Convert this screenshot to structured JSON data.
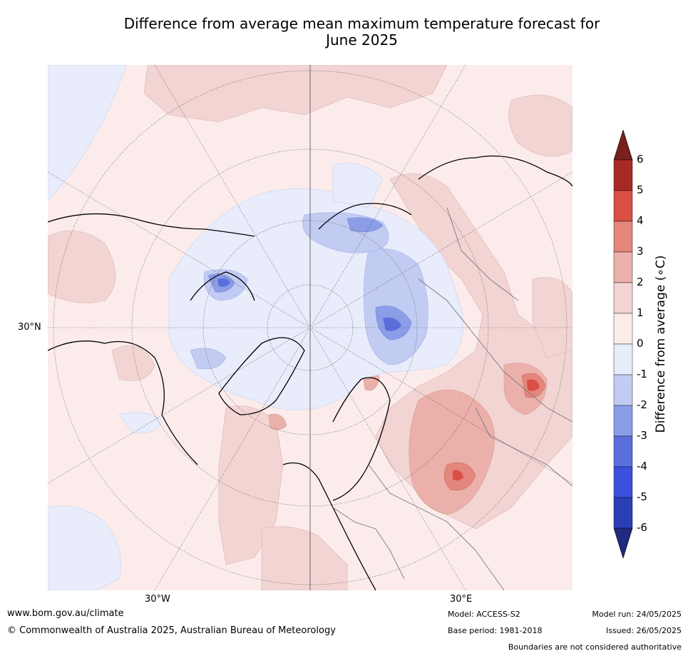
{
  "title_line1": "Difference from average mean maximum temperature forecast for",
  "title_line2": "June 2025",
  "map": {
    "lat_labels": [
      "30°N"
    ],
    "lon_labels": [
      "30°W",
      "30°E"
    ],
    "colors": {
      "ocean_base": "#fbeceb",
      "warm_1_2": "#f2d4d3",
      "warm_2_3": "#ebb0aa",
      "warm_3_4": "#e4867c",
      "warm_4_5": "#d84f44",
      "cool_0_1": "#e8ecfb",
      "cool_1_2": "#c2cbf2",
      "cool_2_3": "#8c9de8",
      "cool_3_4": "#5a6fdc"
    }
  },
  "colorbar": {
    "title": "Difference from average (∘C)",
    "ticks": [
      "6",
      "5",
      "4",
      "3",
      "2",
      "1",
      "0",
      "-1",
      "-2",
      "-3",
      "-4",
      "-5",
      "-6"
    ],
    "colors": [
      "#a72b24",
      "#d84f44",
      "#e4867c",
      "#ebb0aa",
      "#f2d4d3",
      "#fbeceb",
      "#e8ecfb",
      "#c2cbf2",
      "#8c9de8",
      "#5a6fdc",
      "#3b50dc",
      "#2a3fb5"
    ],
    "over_color": "#7a1f1b",
    "under_color": "#1f2a80"
  },
  "footer": {
    "website": "www.bom.gov.au/climate",
    "copyright": "© Commonwealth of Australia 2025, Australian Bureau of Meteorology",
    "model": "Model: ACCESS-S2",
    "base_period": "Base period: 1981-2018",
    "model_run": "Model run: 24/05/2025",
    "issued": "Issued: 26/05/2025",
    "boundaries_note": "Boundaries are not considered authoritative"
  }
}
